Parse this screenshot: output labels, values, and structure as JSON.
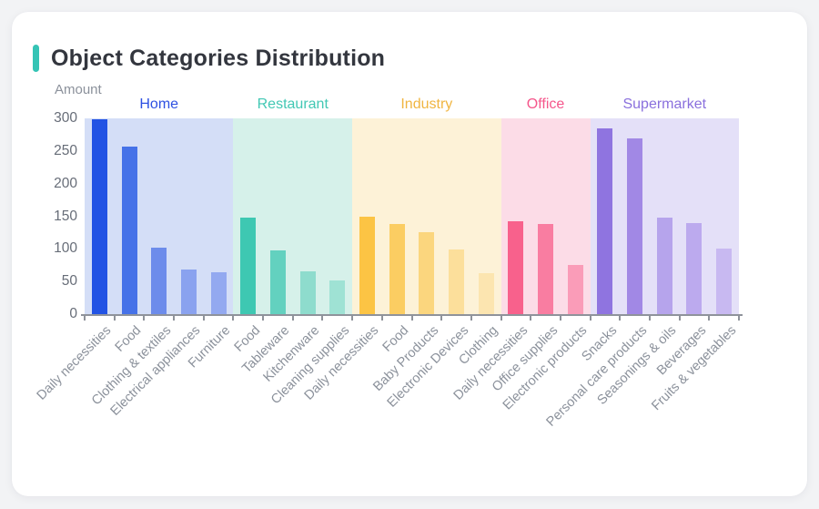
{
  "card": {
    "title": "Object Categories Distribution",
    "title_accent_color": "#35c4b5"
  },
  "chart_data": {
    "type": "bar",
    "title": "Object Categories Distribution",
    "ylabel": "Amount",
    "ylim": [
      0,
      300
    ],
    "yticks": [
      0,
      50,
      100,
      150,
      200,
      250,
      300
    ],
    "grid": false,
    "legend_position": "group-headers-top",
    "axis_color": "#8f939b",
    "groups": [
      {
        "name": "Home",
        "label_color": "#2e51e2",
        "band_color": "#d4def7",
        "categories": [
          "Daily necessities",
          "Food",
          "Clothing & textiles",
          "Electrical appliances",
          "Furniture"
        ],
        "values": [
          298,
          257,
          102,
          69,
          64
        ],
        "bar_colors": [
          "#2253e4",
          "#4672e8",
          "#6d8ceb",
          "#8aa2ef",
          "#93a9f0"
        ]
      },
      {
        "name": "Restaurant",
        "label_color": "#42c8b4",
        "band_color": "#d6f1ea",
        "categories": [
          "Food",
          "Tableware",
          "Kitchenware",
          "Cleaning supplies"
        ],
        "values": [
          148,
          97,
          65,
          51
        ],
        "bar_colors": [
          "#3ec8b2",
          "#63d1bf",
          "#8edccd",
          "#9fe2d4"
        ]
      },
      {
        "name": "Industry",
        "label_color": "#f0b541",
        "band_color": "#fdf2d7",
        "categories": [
          "Daily necessities",
          "Food",
          "Baby Products",
          "Electronic Devices",
          "Clothing"
        ],
        "values": [
          150,
          138,
          126,
          99,
          63
        ],
        "bar_colors": [
          "#fcc444",
          "#fbcd62",
          "#fbd67e",
          "#fcdf9b",
          "#fce5b0"
        ]
      },
      {
        "name": "Office",
        "label_color": "#f5568b",
        "band_color": "#fcdce7",
        "categories": [
          "Daily necessities",
          "Office supplies",
          "Electronic products"
        ],
        "values": [
          142,
          138,
          75
        ],
        "bar_colors": [
          "#f8618c",
          "#f97da1",
          "#fa9cb8"
        ]
      },
      {
        "name": "Supermarket",
        "label_color": "#8a70dd",
        "band_color": "#e4e0f8",
        "categories": [
          "Snacks",
          "Personal care products",
          "Seasonings & oils",
          "Beverages",
          "Fruits & vegetables"
        ],
        "values": [
          284,
          270,
          148,
          140,
          101
        ],
        "bar_colors": [
          "#8f74e0",
          "#a188e5",
          "#b6a4ec",
          "#bcaaee",
          "#c8b9f1"
        ]
      }
    ]
  }
}
